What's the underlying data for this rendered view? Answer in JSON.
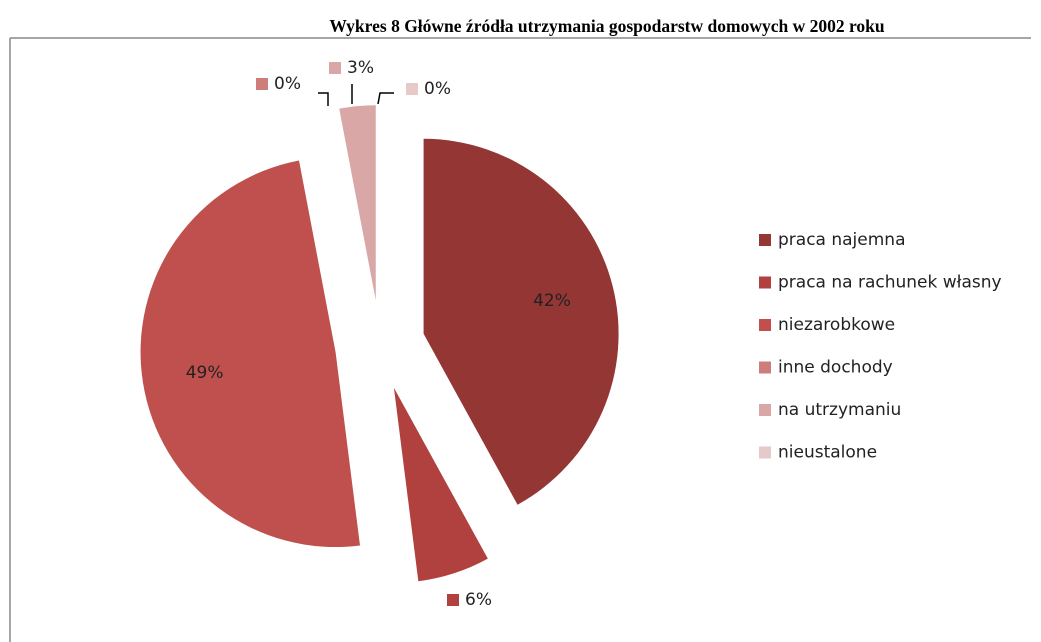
{
  "chart_data": {
    "type": "pie",
    "title": "Wykres 8 Główne źródła utrzymania gospodarstw domowych w 2002 roku",
    "categories": [
      "praca najemna",
      "praca na rachunek własny",
      "niezarobkowe",
      "inne dochody",
      "na utrzymaniu",
      "nieustalone"
    ],
    "values": [
      42,
      6,
      49,
      0,
      3,
      0
    ],
    "value_labels": [
      "42%",
      "6%",
      "49%",
      "0%",
      "3%",
      "0%"
    ],
    "colors": [
      "#943634",
      "#b0413e",
      "#c0504d",
      "#cd7e7b",
      "#d9a7a5",
      "#e6c9c8"
    ],
    "legend": "right"
  }
}
